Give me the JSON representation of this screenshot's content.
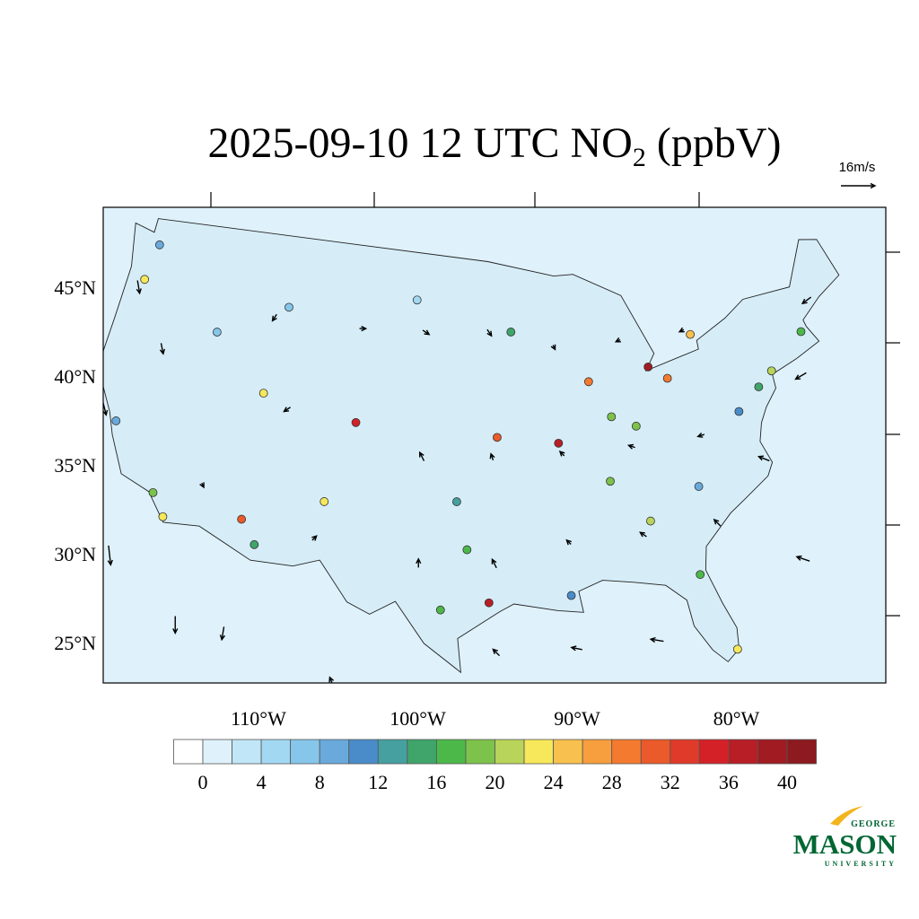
{
  "title": {
    "main": "2025-09-10 12 UTC NO",
    "subscript": "2",
    "suffix": " (ppbV)"
  },
  "latitude_labels": [
    {
      "value": 45,
      "label": "45°N"
    },
    {
      "value": 40,
      "label": "40°N"
    },
    {
      "value": 35,
      "label": "35°N"
    },
    {
      "value": 30,
      "label": "30°N"
    },
    {
      "value": 25,
      "label": "25°N"
    }
  ],
  "longitude_labels": [
    {
      "value": -110,
      "label": "110°W"
    },
    {
      "value": -100,
      "label": "100°W"
    },
    {
      "value": -90,
      "label": "90°W"
    },
    {
      "value": -80,
      "label": "80°W"
    }
  ],
  "colorbar": {
    "levels": [
      0,
      2,
      4,
      6,
      8,
      10,
      12,
      14,
      16,
      18,
      20,
      22,
      24,
      26,
      28,
      30,
      32,
      34,
      36,
      38,
      40
    ],
    "ticks": [
      0,
      4,
      8,
      12,
      16,
      20,
      24,
      28,
      32,
      36,
      40
    ],
    "colors": [
      "#ffffff",
      "#dff1fa",
      "#c0e6f7",
      "#a3d8f3",
      "#86c6ea",
      "#6aa9dc",
      "#4a8cc9",
      "#46a0a0",
      "#3fa56b",
      "#4db84a",
      "#7dc24b",
      "#b8d45a",
      "#f6e85a",
      "#f8c04e",
      "#f79e3e",
      "#f47a2f",
      "#ea5a2a",
      "#e03a2a",
      "#d42128",
      "#b81e26",
      "#a01b22",
      "#8c1a1f"
    ]
  },
  "wind": {
    "reference": {
      "value": 16,
      "label": "16m/s"
    },
    "vectors": [
      [
        -123,
        45,
        1,
        -6
      ],
      [
        -123,
        38,
        2,
        -8
      ],
      [
        -120,
        30,
        1,
        -9
      ],
      [
        -115,
        27,
        0,
        -8
      ],
      [
        -112,
        45,
        -2,
        -3
      ],
      [
        -110,
        40,
        -3,
        -2
      ],
      [
        -107,
        33,
        2,
        2
      ],
      [
        -105,
        45,
        3,
        0
      ],
      [
        -100,
        45,
        3,
        -2
      ],
      [
        -100,
        38,
        -2,
        4
      ],
      [
        -100,
        32,
        0,
        4
      ],
      [
        -95,
        45,
        2,
        -3
      ],
      [
        -95,
        38,
        -1,
        3
      ],
      [
        -95,
        32,
        -2,
        4
      ],
      [
        -95,
        27,
        -3,
        3
      ],
      [
        -90,
        44,
        1,
        -2
      ],
      [
        -90,
        38,
        -2,
        2
      ],
      [
        -90,
        33,
        -2,
        2
      ],
      [
        -90,
        27,
        -5,
        1
      ],
      [
        -85,
        44,
        -2,
        -1
      ],
      [
        -85,
        38,
        -3,
        1
      ],
      [
        -85,
        33,
        -3,
        2
      ],
      [
        -85,
        27,
        -6,
        1
      ],
      [
        -80,
        44,
        -2,
        -1
      ],
      [
        -80,
        38,
        -3,
        -1
      ],
      [
        -80,
        33,
        -3,
        3
      ],
      [
        -76,
        36,
        -5,
        2
      ],
      [
        -75,
        30,
        -6,
        2
      ],
      [
        -72,
        40,
        -5,
        -3
      ],
      [
        -70,
        44,
        -4,
        -3
      ],
      [
        -112,
        27,
        -1,
        -6
      ],
      [
        -105,
        25,
        -2,
        5
      ],
      [
        -115,
        35,
        1,
        -2
      ],
      [
        -120,
        42,
        1,
        -5
      ]
    ]
  },
  "stations": [
    [
      -122.3,
      47.6,
      8
    ],
    [
      -122.7,
      45.5,
      22
    ],
    [
      -118.2,
      34.0,
      18
    ],
    [
      -117.2,
      32.8,
      22
    ],
    [
      -121.9,
      37.4,
      8
    ],
    [
      -111.9,
      40.7,
      22
    ],
    [
      -112.0,
      33.5,
      30
    ],
    [
      -110.9,
      32.2,
      14
    ],
    [
      -106.6,
      35.1,
      22
    ],
    [
      -104.9,
      39.7,
      34
    ],
    [
      -97.5,
      35.5,
      12
    ],
    [
      -96.8,
      32.8,
      16
    ],
    [
      -95.4,
      29.8,
      36
    ],
    [
      -98.5,
      29.4,
      16
    ],
    [
      -90.2,
      38.6,
      36
    ],
    [
      -94.6,
      39.1,
      30
    ],
    [
      -87.6,
      41.9,
      28
    ],
    [
      -83.0,
      42.3,
      38
    ],
    [
      -84.4,
      33.7,
      20
    ],
    [
      -80.2,
      25.8,
      22
    ],
    [
      -81.7,
      30.3,
      16
    ],
    [
      -74.0,
      40.7,
      20
    ],
    [
      -77.0,
      38.9,
      10
    ],
    [
      -75.2,
      40.0,
      14
    ],
    [
      -71.1,
      42.4,
      16
    ],
    [
      -79.4,
      43.7,
      24
    ],
    [
      -81.7,
      41.5,
      28
    ],
    [
      -86.2,
      39.8,
      18
    ],
    [
      -84.5,
      39.1,
      18
    ],
    [
      -93.3,
      45.0,
      14
    ],
    [
      -90.1,
      30.0,
      10
    ],
    [
      -111.0,
      45.7,
      6
    ],
    [
      -116.2,
      43.6,
      6
    ],
    [
      -100.8,
      46.8,
      4
    ],
    [
      -86.8,
      36.2,
      18
    ],
    [
      -80.8,
      35.2,
      8
    ]
  ],
  "logo": {
    "top": "GEORGE",
    "name": "MASON",
    "bottom": "UNIVERSITY"
  }
}
